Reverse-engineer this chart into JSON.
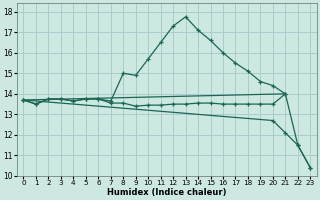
{
  "xlabel": "Humidex (Indice chaleur)",
  "bg_color": "#cce8e0",
  "grid_color": "#aacccc",
  "line_color": "#1a6655",
  "xlim": [
    -0.5,
    23.5
  ],
  "ylim": [
    10,
    18.4
  ],
  "xticks": [
    0,
    1,
    2,
    3,
    4,
    5,
    6,
    7,
    8,
    9,
    10,
    11,
    12,
    13,
    14,
    15,
    16,
    17,
    18,
    19,
    20,
    21,
    22,
    23
  ],
  "yticks": [
    10,
    11,
    12,
    13,
    14,
    15,
    16,
    17,
    18
  ],
  "curve_x": [
    0,
    1,
    2,
    3,
    4,
    5,
    6,
    7,
    8,
    9,
    10,
    11,
    12,
    13,
    14,
    15,
    16,
    17,
    18,
    19,
    20,
    21,
    22,
    23
  ],
  "curve_y": [
    13.7,
    13.5,
    13.75,
    13.75,
    13.65,
    13.75,
    13.75,
    13.65,
    15.0,
    14.9,
    15.7,
    16.5,
    17.3,
    17.75,
    17.1,
    16.6,
    16.0,
    15.5,
    15.1,
    14.6,
    14.4,
    14.0,
    11.5,
    10.4
  ],
  "flat_x": [
    0,
    1,
    2,
    3,
    4,
    5,
    6,
    7,
    8,
    9,
    10,
    11,
    12,
    13,
    14,
    15,
    16,
    17,
    18,
    19,
    20,
    21
  ],
  "flat_y": [
    13.7,
    13.5,
    13.75,
    13.75,
    13.65,
    13.75,
    13.75,
    13.55,
    13.55,
    13.4,
    13.45,
    13.45,
    13.5,
    13.5,
    13.55,
    13.55,
    13.5,
    13.5,
    13.5,
    13.5,
    13.5,
    14.0
  ],
  "hline_x": [
    0,
    21
  ],
  "hline_y": [
    13.7,
    14.0
  ],
  "diag_x": [
    0,
    20,
    21,
    22,
    23
  ],
  "diag_y": [
    13.7,
    12.7,
    12.1,
    11.5,
    10.4
  ]
}
